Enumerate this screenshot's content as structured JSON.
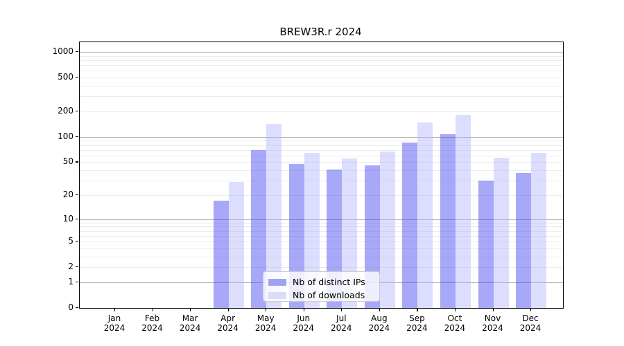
{
  "chart_data": {
    "type": "bar",
    "title": "BREW3R.r 2024",
    "x": {
      "months": [
        "Jan",
        "Feb",
        "Mar",
        "Apr",
        "May",
        "Jun",
        "Jul",
        "Aug",
        "Sep",
        "Oct",
        "Nov",
        "Dec"
      ],
      "year": "2024"
    },
    "series": [
      {
        "name": "Nb of distinct IPs",
        "slug": "distinct-ips",
        "bar_color": "rgba(70,70,242,0.47)",
        "legend_color": "#a2a2f2",
        "values": [
          0,
          0,
          0,
          17,
          70,
          48,
          41,
          46,
          85,
          107,
          30,
          37
        ]
      },
      {
        "name": "Nb of downloads",
        "slug": "downloads",
        "bar_color": "rgba(180,180,250,0.45)",
        "legend_color": "#dcdcfa",
        "values": [
          0,
          0,
          0,
          29,
          142,
          64,
          55,
          67,
          148,
          182,
          57,
          65
        ]
      }
    ],
    "y_axis": {
      "scale": "log1p",
      "ticks": [
        0,
        1,
        2,
        5,
        10,
        20,
        50,
        100,
        200,
        500,
        1000
      ],
      "range_top": 1296
    },
    "grid": {
      "major_values": [
        1,
        10,
        100,
        1000
      ],
      "minor_color": "#ececec",
      "major_color": "#b0b0b0"
    },
    "legend": {
      "position": "lower-center"
    },
    "colors": {
      "axis": "#000000",
      "background": "#ffffff"
    }
  }
}
